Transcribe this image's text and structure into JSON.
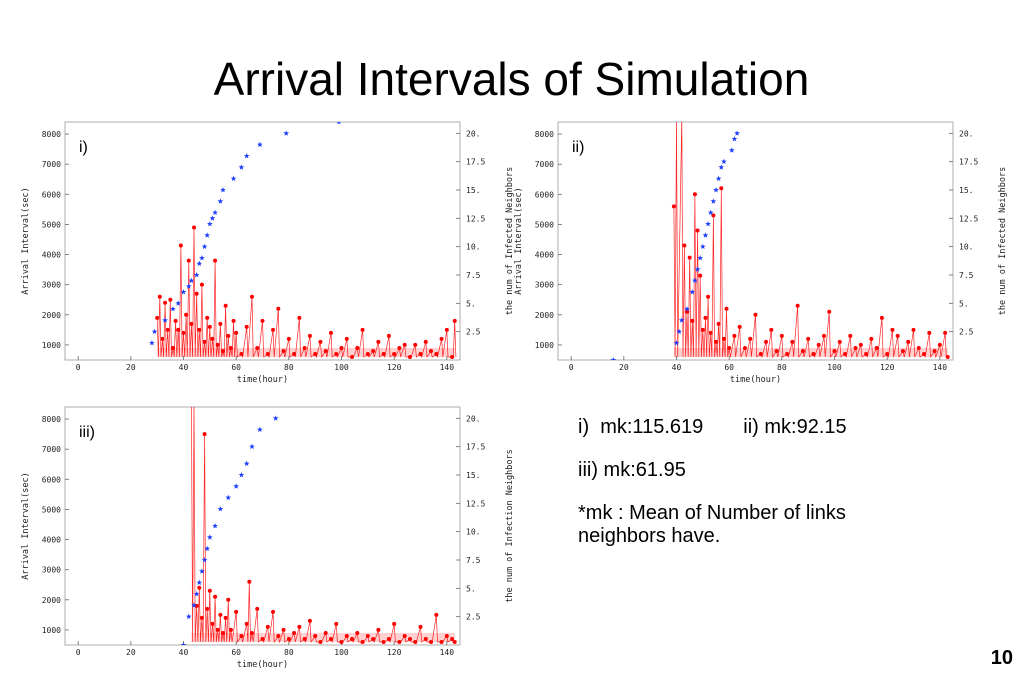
{
  "slide": {
    "title": "Arrival Intervals of Simulation",
    "page_number": "10"
  },
  "notes": {
    "mk_i": "i)  mk:115.619",
    "mk_ii": "ii) mk:92.15",
    "mk_iii": "iii) mk:61.95",
    "definition": "*mk : Mean of Number of links neighbors have."
  },
  "colors": {
    "interval": "#ff0000",
    "neighbors": "#1f3fff"
  },
  "chart_data": [
    {
      "type": "line",
      "panel_label": "i)",
      "xlabel": "time(hour)",
      "ylabel": "Arrival Interval(sec)",
      "ylabel_right": "the num of Infected Neighbors",
      "xlim": [
        -5,
        145
      ],
      "ylim": [
        500,
        8400
      ],
      "ylim_right": [
        0,
        21
      ],
      "xticks": [
        0,
        20,
        40,
        60,
        80,
        100,
        120,
        140
      ],
      "yticks": [
        1000,
        2000,
        3000,
        4000,
        5000,
        6000,
        7000,
        8000
      ],
      "yticks_right": [
        "2.5",
        "5.",
        "7.5",
        "10.",
        "12.5",
        "15.",
        "17.5",
        "20."
      ],
      "series": [
        {
          "kind": "line-markers",
          "axis": "left",
          "x": [
            30,
            31,
            32,
            33,
            34,
            35,
            36,
            37,
            38,
            39,
            40,
            41,
            42,
            43,
            44,
            45,
            46,
            47,
            48,
            49,
            50,
            51,
            52,
            53,
            54,
            55,
            56,
            57,
            58,
            59,
            60,
            62,
            64,
            66,
            68,
            70,
            72,
            74,
            76,
            78,
            80,
            82,
            84,
            86,
            88,
            90,
            92,
            94,
            96,
            98,
            100,
            102,
            104,
            106,
            108,
            110,
            112,
            114,
            116,
            118,
            120,
            122,
            124,
            126,
            128,
            130,
            132,
            134,
            136,
            138,
            140,
            142,
            143
          ],
          "values": [
            1900,
            2600,
            1200,
            2400,
            1500,
            2500,
            900,
            1800,
            1500,
            4300,
            1400,
            2000,
            3800,
            1700,
            4900,
            2700,
            1500,
            3000,
            1100,
            1900,
            1600,
            1200,
            3800,
            1000,
            1700,
            800,
            2300,
            1300,
            900,
            1800,
            1400,
            700,
            1600,
            2600,
            900,
            1800,
            700,
            1500,
            2200,
            800,
            1200,
            700,
            1900,
            900,
            1300,
            700,
            1100,
            800,
            1400,
            700,
            900,
            1200,
            600,
            900,
            1500,
            700,
            800,
            1100,
            700,
            1300,
            700,
            900,
            1000,
            600,
            1000,
            700,
            1100,
            800,
            700,
            1200,
            1500,
            600,
            1800
          ]
        },
        {
          "kind": "scatter-star",
          "axis": "right",
          "x": [
            28,
            29,
            33,
            36,
            38,
            40,
            42,
            43,
            45,
            46,
            47,
            48,
            49,
            50,
            51,
            52,
            54,
            55,
            59,
            62,
            64,
            69,
            79,
            99
          ],
          "values": [
            1.5,
            2.5,
            3.5,
            4.5,
            5,
            6,
            6.5,
            7,
            7.5,
            8.5,
            9,
            10,
            11,
            12,
            12.5,
            13,
            14,
            15,
            16,
            17,
            18,
            19,
            20,
            21
          ]
        }
      ]
    },
    {
      "type": "line",
      "panel_label": "ii)",
      "xlabel": "time(hour)",
      "ylabel": "Arrival Interval(sec)",
      "ylabel_right": "the num of Infected Neighbors",
      "xlim": [
        -5,
        145
      ],
      "ylim": [
        500,
        8400
      ],
      "ylim_right": [
        0,
        21
      ],
      "xticks": [
        0,
        20,
        40,
        60,
        80,
        100,
        120,
        140
      ],
      "yticks": [
        1000,
        2000,
        3000,
        4000,
        5000,
        6000,
        7000,
        8000
      ],
      "yticks_right": [
        "2.5",
        "5.",
        "7.5",
        "10.",
        "12.5",
        "15.",
        "17.5",
        "20."
      ],
      "series": [
        {
          "kind": "line-markers",
          "axis": "left",
          "x": [
            39,
            40,
            42,
            43,
            44,
            45,
            46,
            47,
            48,
            49,
            50,
            51,
            52,
            53,
            54,
            55,
            56,
            57,
            58,
            59,
            60,
            62,
            64,
            66,
            68,
            70,
            72,
            74,
            76,
            78,
            80,
            82,
            84,
            86,
            88,
            90,
            92,
            94,
            96,
            98,
            100,
            102,
            104,
            106,
            108,
            110,
            112,
            114,
            116,
            118,
            120,
            122,
            124,
            126,
            128,
            130,
            132,
            134,
            136,
            138,
            140,
            142,
            143
          ],
          "values": [
            5600,
            8600,
            8600,
            4300,
            2100,
            3900,
            1800,
            6000,
            4800,
            3300,
            1500,
            1900,
            2600,
            1400,
            5300,
            1100,
            1700,
            6200,
            1200,
            2200,
            900,
            1300,
            1600,
            900,
            1200,
            2000,
            700,
            1100,
            1500,
            800,
            1300,
            700,
            1100,
            2300,
            800,
            1200,
            700,
            1000,
            1300,
            2100,
            800,
            1100,
            700,
            1300,
            900,
            1000,
            700,
            1200,
            900,
            1900,
            700,
            1500,
            1300,
            800,
            1100,
            1500,
            900,
            700,
            1400,
            800,
            1000,
            1400,
            600
          ]
        },
        {
          "kind": "scatter-star",
          "axis": "right",
          "x": [
            16,
            40,
            41,
            42,
            44,
            46,
            47,
            48,
            49,
            50,
            51,
            52,
            53,
            54,
            55,
            56,
            57,
            58,
            61,
            62,
            63
          ],
          "values": [
            0,
            1.5,
            2.5,
            3.5,
            4.5,
            6,
            7,
            8,
            9,
            10,
            11,
            12,
            13,
            14,
            15,
            16,
            17,
            17.5,
            18.5,
            19.5,
            20
          ]
        }
      ]
    },
    {
      "type": "line",
      "panel_label": "iii)",
      "xlabel": "time(hour)",
      "ylabel": "Arrival Interval(sec)",
      "ylabel_right": "the num of Infection Neighbors",
      "xlim": [
        -5,
        145
      ],
      "ylim": [
        500,
        8400
      ],
      "ylim_right": [
        0,
        21
      ],
      "xticks": [
        0,
        20,
        40,
        60,
        80,
        100,
        120,
        140
      ],
      "yticks": [
        1000,
        2000,
        3000,
        4000,
        5000,
        6000,
        7000,
        8000
      ],
      "yticks_right": [
        "2.5",
        "5.",
        "7.5",
        "10.",
        "12.5",
        "15.",
        "17.5",
        "20."
      ],
      "series": [
        {
          "kind": "line-markers",
          "axis": "left",
          "x": [
            43,
            44,
            45,
            46,
            47,
            48,
            49,
            50,
            51,
            52,
            53,
            54,
            55,
            56,
            57,
            58,
            60,
            62,
            64,
            65,
            66,
            68,
            70,
            72,
            74,
            76,
            78,
            80,
            82,
            84,
            86,
            88,
            90,
            92,
            94,
            96,
            98,
            100,
            102,
            104,
            106,
            108,
            110,
            112,
            114,
            116,
            118,
            120,
            122,
            124,
            126,
            128,
            130,
            132,
            134,
            136,
            138,
            140,
            142,
            143
          ],
          "values": [
            8600,
            8600,
            1800,
            2400,
            1400,
            7500,
            1700,
            2300,
            1200,
            2100,
            1000,
            1500,
            900,
            1400,
            2000,
            1000,
            1600,
            800,
            1200,
            2600,
            900,
            1700,
            700,
            1100,
            1600,
            800,
            1000,
            700,
            900,
            1100,
            700,
            1300,
            800,
            600,
            900,
            700,
            1200,
            600,
            800,
            700,
            900,
            600,
            800,
            700,
            1000,
            600,
            700,
            1200,
            600,
            800,
            700,
            600,
            1100,
            700,
            600,
            1500,
            600,
            800,
            700,
            600
          ]
        },
        {
          "kind": "scatter-star",
          "axis": "right",
          "x": [
            40,
            42,
            44,
            45,
            46,
            47,
            48,
            49,
            50,
            52,
            54,
            57,
            60,
            62,
            64,
            66,
            69,
            75
          ],
          "values": [
            0,
            2.5,
            3.5,
            4.5,
            5.5,
            6.5,
            7.5,
            8.5,
            9.5,
            10.5,
            12,
            13,
            14,
            15,
            16,
            17.5,
            19,
            20
          ]
        }
      ]
    }
  ]
}
